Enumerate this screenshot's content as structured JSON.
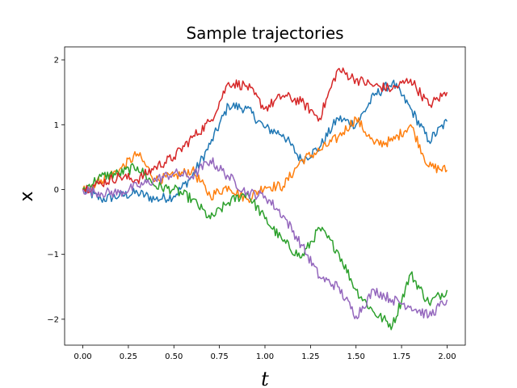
{
  "chart_data": {
    "type": "line",
    "title": "Sample trajectories",
    "xlabel": "t",
    "ylabel": "x",
    "xlim": [
      -0.1,
      2.1
    ],
    "ylim": [
      -2.4,
      2.2
    ],
    "grid": false,
    "legend": "none",
    "xticks": [
      0.0,
      0.25,
      0.5,
      0.75,
      1.0,
      1.25,
      1.5,
      1.75,
      2.0
    ],
    "xtick_labels": [
      "0.00",
      "0.25",
      "0.50",
      "0.75",
      "1.00",
      "1.25",
      "1.50",
      "1.75",
      "2.00"
    ],
    "yticks": [
      -2,
      -1,
      0,
      1,
      2
    ],
    "ytick_labels": [
      "−2",
      "−1",
      "0",
      "1",
      "2"
    ],
    "x": [
      0.0,
      0.1,
      0.2,
      0.3,
      0.4,
      0.5,
      0.6,
      0.7,
      0.8,
      0.9,
      1.0,
      1.1,
      1.2,
      1.3,
      1.4,
      1.5,
      1.6,
      1.7,
      1.8,
      1.9,
      2.0
    ],
    "series": [
      {
        "color": "#1f77b4",
        "values": [
          0.0,
          -0.15,
          -0.1,
          -0.05,
          -0.15,
          -0.1,
          0.2,
          0.7,
          1.3,
          1.25,
          0.95,
          0.85,
          0.45,
          0.65,
          1.1,
          1.0,
          1.45,
          1.65,
          1.25,
          0.75,
          1.05
        ]
      },
      {
        "color": "#ff7f0e",
        "values": [
          0.0,
          0.15,
          0.3,
          0.55,
          0.15,
          0.2,
          0.3,
          -0.1,
          0.05,
          -0.15,
          0.05,
          0.05,
          0.45,
          0.6,
          0.8,
          1.1,
          0.7,
          0.75,
          1.0,
          0.35,
          0.3
        ]
      },
      {
        "color": "#2ca02c",
        "values": [
          0.0,
          0.2,
          0.25,
          0.35,
          0.05,
          0.0,
          -0.15,
          -0.45,
          -0.2,
          -0.05,
          -0.45,
          -0.8,
          -1.05,
          -0.6,
          -0.95,
          -1.55,
          -1.9,
          -2.1,
          -1.3,
          -1.75,
          -1.55
        ]
      },
      {
        "color": "#d62728",
        "values": [
          0.0,
          0.1,
          0.2,
          0.15,
          0.35,
          0.5,
          0.8,
          1.05,
          1.65,
          1.6,
          1.25,
          1.45,
          1.35,
          1.1,
          1.85,
          1.7,
          1.6,
          1.55,
          1.7,
          1.3,
          1.5
        ]
      },
      {
        "color": "#9467bd",
        "values": [
          0.0,
          -0.05,
          -0.05,
          0.05,
          0.15,
          0.25,
          0.2,
          0.45,
          0.2,
          -0.05,
          -0.1,
          -0.4,
          -0.85,
          -1.35,
          -1.5,
          -1.95,
          -1.55,
          -1.7,
          -1.8,
          -1.95,
          -1.7
        ]
      }
    ]
  }
}
